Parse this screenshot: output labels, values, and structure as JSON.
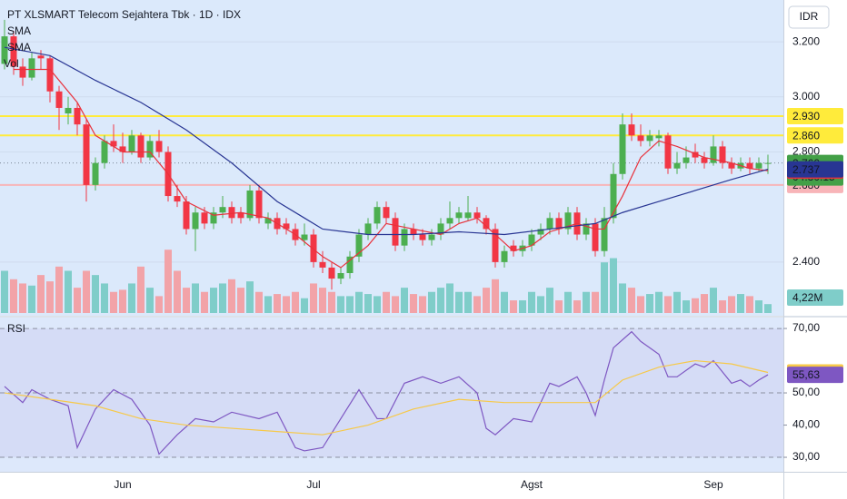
{
  "chart_data": [
    {
      "type": "candlestick",
      "title": "PT XLSMART Telecom Sejahtera Tbk · 1D · IDX",
      "legend": [
        "SMA",
        "SMA",
        "Vol"
      ],
      "currency": "IDR",
      "categories": [
        null,
        null,
        null,
        null,
        null,
        null,
        null,
        null,
        null,
        null,
        null,
        null,
        null,
        "Jun",
        null,
        null,
        null,
        null,
        null,
        null,
        null,
        null,
        null,
        null,
        null,
        null,
        null,
        null,
        null,
        null,
        null,
        null,
        null,
        null,
        "Jul",
        null,
        null,
        null,
        null,
        null,
        null,
        null,
        null,
        null,
        null,
        null,
        null,
        null,
        null,
        null,
        null,
        null,
        null,
        null,
        null,
        null,
        null,
        null,
        "Agst",
        null,
        null,
        null,
        null,
        null,
        null,
        null,
        null,
        null,
        null,
        null,
        null,
        null,
        null,
        null,
        null,
        null,
        null,
        null,
        "Sep",
        null,
        null,
        null,
        null,
        null,
        null
      ],
      "ohlc": [
        [
          3120,
          3280,
          3100,
          3220
        ],
        [
          3220,
          3240,
          3080,
          3110
        ],
        [
          3110,
          3140,
          3040,
          3070
        ],
        [
          3070,
          3160,
          3060,
          3140
        ],
        [
          3150,
          3170,
          3100,
          3140
        ],
        [
          3140,
          3150,
          2980,
          3020
        ],
        [
          3020,
          3040,
          2880,
          2960
        ],
        [
          2940,
          3000,
          2900,
          2960
        ],
        [
          2960,
          2980,
          2860,
          2900
        ],
        [
          2900,
          2920,
          2620,
          2680
        ],
        [
          2680,
          2780,
          2660,
          2760
        ],
        [
          2760,
          2860,
          2740,
          2840
        ],
        [
          2840,
          2900,
          2800,
          2820
        ],
        [
          2820,
          2870,
          2760,
          2800
        ],
        [
          2800,
          2880,
          2790,
          2860
        ],
        [
          2860,
          2870,
          2760,
          2780
        ],
        [
          2780,
          2860,
          2770,
          2840
        ],
        [
          2840,
          2880,
          2780,
          2800
        ],
        [
          2800,
          2820,
          2620,
          2640
        ],
        [
          2640,
          2680,
          2600,
          2620
        ],
        [
          2620,
          2640,
          2500,
          2520
        ],
        [
          2520,
          2600,
          2440,
          2580
        ],
        [
          2580,
          2600,
          2520,
          2540
        ],
        [
          2540,
          2600,
          2520,
          2580
        ],
        [
          2580,
          2640,
          2560,
          2600
        ],
        [
          2600,
          2620,
          2540,
          2560
        ],
        [
          2580,
          2600,
          2540,
          2560
        ],
        [
          2560,
          2680,
          2550,
          2660
        ],
        [
          2660,
          2680,
          2540,
          2560
        ],
        [
          2540,
          2580,
          2520,
          2560
        ],
        [
          2560,
          2580,
          2500,
          2520
        ],
        [
          2540,
          2560,
          2500,
          2520
        ],
        [
          2520,
          2540,
          2460,
          2480
        ],
        [
          2480,
          2540,
          2460,
          2500
        ],
        [
          2500,
          2520,
          2380,
          2400
        ],
        [
          2400,
          2440,
          2360,
          2380
        ],
        [
          2380,
          2400,
          2300,
          2340
        ],
        [
          2340,
          2380,
          2320,
          2360
        ],
        [
          2360,
          2440,
          2340,
          2420
        ],
        [
          2420,
          2520,
          2400,
          2500
        ],
        [
          2500,
          2560,
          2480,
          2540
        ],
        [
          2540,
          2620,
          2520,
          2600
        ],
        [
          2600,
          2620,
          2540,
          2560
        ],
        [
          2560,
          2580,
          2440,
          2460
        ],
        [
          2460,
          2540,
          2440,
          2520
        ],
        [
          2520,
          2540,
          2480,
          2500
        ],
        [
          2500,
          2520,
          2460,
          2480
        ],
        [
          2480,
          2520,
          2460,
          2500
        ],
        [
          2500,
          2560,
          2480,
          2540
        ],
        [
          2540,
          2620,
          2520,
          2560
        ],
        [
          2560,
          2600,
          2540,
          2580
        ],
        [
          2560,
          2640,
          2550,
          2580
        ],
        [
          2580,
          2600,
          2540,
          2560
        ],
        [
          2560,
          2570,
          2500,
          2520
        ],
        [
          2520,
          2540,
          2380,
          2400
        ],
        [
          2400,
          2460,
          2380,
          2440
        ],
        [
          2460,
          2480,
          2420,
          2440
        ],
        [
          2440,
          2480,
          2420,
          2460
        ],
        [
          2460,
          2520,
          2440,
          2500
        ],
        [
          2500,
          2540,
          2480,
          2520
        ],
        [
          2520,
          2580,
          2500,
          2560
        ],
        [
          2560,
          2580,
          2500,
          2520
        ],
        [
          2520,
          2600,
          2500,
          2580
        ],
        [
          2580,
          2600,
          2480,
          2500
        ],
        [
          2500,
          2560,
          2480,
          2540
        ],
        [
          2540,
          2560,
          2420,
          2440
        ],
        [
          2440,
          2600,
          2420,
          2560
        ],
        [
          2560,
          2760,
          2540,
          2720
        ],
        [
          2720,
          2940,
          2700,
          2900
        ],
        [
          2900,
          2940,
          2840,
          2860
        ],
        [
          2860,
          2900,
          2820,
          2840
        ],
        [
          2840,
          2880,
          2820,
          2860
        ],
        [
          2850,
          2880,
          2820,
          2860
        ],
        [
          2860,
          2870,
          2720,
          2740
        ],
        [
          2740,
          2800,
          2720,
          2760
        ],
        [
          2760,
          2820,
          2740,
          2780
        ],
        [
          2800,
          2830,
          2760,
          2780
        ],
        [
          2780,
          2800,
          2740,
          2760
        ],
        [
          2760,
          2860,
          2750,
          2820
        ],
        [
          2820,
          2840,
          2740,
          2760
        ],
        [
          2760,
          2780,
          2720,
          2740
        ],
        [
          2740,
          2780,
          2730,
          2760
        ],
        [
          2760,
          2780,
          2720,
          2740
        ],
        [
          2740,
          2780,
          2730,
          2760
        ],
        [
          2760,
          2790,
          2720,
          2760
        ]
      ],
      "ylim": [
        2215,
        3352
      ],
      "yticks": [
        {
          "value": 2400,
          "label": "2.400"
        },
        {
          "value": 2800,
          "label": "2.800"
        },
        {
          "value": 3000,
          "label": "3.000"
        },
        {
          "value": 3200,
          "label": "3.200"
        }
      ],
      "volume": {
        "vlim": [
          0,
          43
        ],
        "up_color": "#7fcdc9",
        "down_color": "#f2a3a8",
        "values": [
          20,
          16,
          14,
          13,
          18,
          15,
          22,
          20,
          12,
          20,
          18,
          14,
          10,
          11,
          14,
          22,
          12,
          8,
          30,
          20,
          12,
          14,
          10,
          12,
          14,
          16,
          12,
          15,
          10,
          8,
          9,
          8,
          10,
          7,
          14,
          12,
          10,
          8,
          8,
          10,
          9,
          8,
          10,
          8,
          12,
          9,
          8,
          10,
          12,
          14,
          10,
          10,
          8,
          12,
          16,
          10,
          6,
          6,
          10,
          8,
          12,
          6,
          10,
          6,
          10,
          10,
          24,
          26,
          14,
          12,
          8,
          9,
          10,
          8,
          10,
          6,
          7,
          9,
          12,
          6,
          8,
          9,
          8,
          6,
          4.22
        ],
        "last": {
          "value": 4.22,
          "label": "4,22M"
        }
      },
      "series": [
        {
          "name": "SMA",
          "color": "#e8323c",
          "x": [
            1,
            5,
            8,
            10,
            13,
            16,
            18,
            20,
            23,
            26,
            29,
            32,
            35,
            37,
            40,
            42,
            45,
            48,
            50,
            52,
            54,
            56,
            58,
            60,
            63,
            65,
            66,
            68,
            70,
            72,
            74,
            77,
            80,
            82,
            84
          ],
          "values": [
            3100,
            3100,
            2980,
            2860,
            2800,
            2800,
            2720,
            2620,
            2570,
            2580,
            2560,
            2500,
            2420,
            2380,
            2460,
            2540,
            2520,
            2500,
            2540,
            2560,
            2500,
            2440,
            2460,
            2510,
            2540,
            2520,
            2520,
            2640,
            2780,
            2840,
            2820,
            2780,
            2760,
            2740,
            2732
          ],
          "last": {
            "value": 2732,
            "label": "2.732"
          }
        },
        {
          "name": "SMA",
          "color": "#283593",
          "x": [
            0,
            5,
            10,
            15,
            20,
            25,
            30,
            33,
            35,
            40,
            45,
            50,
            55,
            60,
            65,
            68,
            72,
            76,
            80,
            84
          ],
          "values": [
            3180,
            3150,
            3060,
            2980,
            2880,
            2760,
            2620,
            2560,
            2520,
            2500,
            2500,
            2510,
            2500,
            2520,
            2540,
            2580,
            2620,
            2660,
            2700,
            2737
          ],
          "last": {
            "value": 2737,
            "label": "2.737"
          }
        }
      ],
      "hlines": [
        {
          "value": 2930,
          "label": "2.930",
          "color": "#ffeb3b"
        },
        {
          "value": 2860,
          "label": "2.860",
          "color": "#ffeb3b"
        },
        {
          "value": 2680,
          "label": "2.680",
          "color": "#f8b4b8"
        }
      ],
      "last_price": {
        "value": 2760,
        "label": "2.760",
        "countdown": "04:30:15",
        "color": "#43a047"
      },
      "up_color": "#4caf50",
      "down_color": "#f23645"
    },
    {
      "type": "rsi",
      "title": "RSI",
      "ylim": [
        25.5,
        73.4
      ],
      "yticks": [
        {
          "value": 30,
          "label": "30,00"
        },
        {
          "value": 40,
          "label": "40,00"
        },
        {
          "value": 50,
          "label": "50,00"
        },
        {
          "value": 70,
          "label": "70,00"
        }
      ],
      "band": [
        30,
        70
      ],
      "dashed": [
        30,
        50,
        70
      ],
      "series": [
        {
          "color": "#7e57c2",
          "x": [
            0,
            2,
            3,
            5,
            7,
            8,
            10,
            12,
            14,
            16,
            17,
            19,
            21,
            23,
            25,
            28,
            30,
            32,
            33,
            35,
            37,
            39,
            41,
            42,
            44,
            46,
            48,
            50,
            52,
            53,
            54,
            56,
            58,
            60,
            61,
            63,
            64,
            65,
            66,
            67,
            69,
            70,
            72,
            73,
            74,
            76,
            77,
            78,
            80,
            81,
            82,
            83,
            84
          ],
          "values": [
            52,
            47,
            51,
            48,
            46,
            33,
            45,
            51,
            48,
            40,
            31,
            37,
            42,
            41,
            44,
            42,
            44,
            33,
            32,
            33,
            42,
            51,
            42,
            42,
            53,
            55,
            53,
            55,
            50,
            39,
            37,
            42,
            41,
            53,
            52,
            55,
            50,
            43,
            54,
            64,
            69,
            66,
            62,
            55,
            55,
            59,
            58,
            60,
            53,
            54,
            52,
            54,
            55.63
          ],
          "last": {
            "value": 55.63,
            "label": "55,63"
          }
        },
        {
          "color": "#f7c948",
          "x": [
            0,
            5,
            10,
            15,
            20,
            25,
            30,
            35,
            40,
            45,
            50,
            55,
            60,
            65,
            68,
            72,
            76,
            80,
            84
          ],
          "values": [
            50,
            48,
            46,
            42,
            40,
            39,
            38,
            37,
            40,
            45,
            48,
            47,
            47,
            47,
            54,
            58,
            60,
            59,
            56.35
          ],
          "last": {
            "value": 56.35,
            "label": "56,35"
          }
        }
      ]
    }
  ]
}
